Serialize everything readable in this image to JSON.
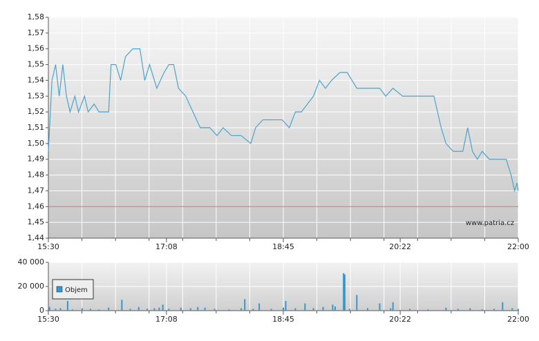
{
  "chart_data": [
    {
      "type": "line",
      "watermark": "www.patria.cz",
      "xlim": [
        "15:30",
        "22:00"
      ],
      "xticks": [
        "15:30",
        "17:08",
        "18:45",
        "20:22",
        "22:00"
      ],
      "ylim": [
        1.44,
        1.58
      ],
      "yticks": [
        {
          "value": 1.44,
          "label": "1,44"
        },
        {
          "value": 1.45,
          "label": "1,45"
        },
        {
          "value": 1.46,
          "label": "1,46"
        },
        {
          "value": 1.47,
          "label": "1,47"
        },
        {
          "value": 1.48,
          "label": "1,48"
        },
        {
          "value": 1.49,
          "label": "1,49"
        },
        {
          "value": 1.5,
          "label": "1,50"
        },
        {
          "value": 1.51,
          "label": "1,51"
        },
        {
          "value": 1.52,
          "label": "1,52"
        },
        {
          "value": 1.53,
          "label": "1,53"
        },
        {
          "value": 1.54,
          "label": "1,54"
        },
        {
          "value": 1.55,
          "label": "1,55"
        },
        {
          "value": 1.56,
          "label": "1,56"
        },
        {
          "value": 1.57,
          "label": "1,57"
        },
        {
          "value": 1.58,
          "label": "1,58"
        }
      ],
      "grid": true,
      "reference_line": 1.46,
      "reference_color": "#e06060",
      "color": "#4aa3cc",
      "x": [
        "15:30",
        "15:31",
        "15:33",
        "15:36",
        "15:39",
        "15:42",
        "15:45",
        "15:48",
        "15:52",
        "15:55",
        "16:00",
        "16:03",
        "16:08",
        "16:12",
        "16:20",
        "16:22",
        "16:26",
        "16:30",
        "16:34",
        "16:40",
        "16:46",
        "16:50",
        "16:54",
        "17:00",
        "17:06",
        "17:10",
        "17:14",
        "17:18",
        "17:24",
        "17:30",
        "17:36",
        "17:44",
        "17:50",
        "17:55",
        "18:02",
        "18:10",
        "18:18",
        "18:22",
        "18:28",
        "18:36",
        "18:44",
        "18:50",
        "18:55",
        "19:00",
        "19:05",
        "19:10",
        "19:15",
        "19:20",
        "19:25",
        "19:32",
        "19:38",
        "19:42",
        "19:46",
        "19:52",
        "20:00",
        "20:05",
        "20:10",
        "20:16",
        "20:24",
        "20:30",
        "20:40",
        "20:50",
        "20:56",
        "21:00",
        "21:06",
        "21:10",
        "21:14",
        "21:18",
        "21:22",
        "21:26",
        "21:30",
        "21:36",
        "21:45",
        "21:50",
        "21:54",
        "21:57",
        "21:59",
        "22:00"
      ],
      "values": [
        1.495,
        1.51,
        1.54,
        1.55,
        1.53,
        1.55,
        1.53,
        1.52,
        1.53,
        1.52,
        1.53,
        1.52,
        1.525,
        1.52,
        1.52,
        1.55,
        1.55,
        1.54,
        1.555,
        1.56,
        1.56,
        1.54,
        1.55,
        1.535,
        1.545,
        1.55,
        1.55,
        1.535,
        1.53,
        1.52,
        1.51,
        1.51,
        1.505,
        1.51,
        1.505,
        1.505,
        1.5,
        1.51,
        1.515,
        1.515,
        1.515,
        1.51,
        1.52,
        1.52,
        1.525,
        1.53,
        1.54,
        1.535,
        1.54,
        1.545,
        1.545,
        1.54,
        1.535,
        1.535,
        1.535,
        1.535,
        1.53,
        1.535,
        1.53,
        1.53,
        1.53,
        1.53,
        1.51,
        1.5,
        1.495,
        1.495,
        1.495,
        1.51,
        1.495,
        1.49,
        1.495,
        1.49,
        1.49,
        1.49,
        1.48,
        1.47,
        1.475,
        1.47
      ]
    },
    {
      "type": "bar",
      "xlim": [
        "15:30",
        "22:00"
      ],
      "xticks": [
        "15:30",
        "17:08",
        "18:45",
        "20:22",
        "22:00"
      ],
      "ylim": [
        0,
        40000
      ],
      "yticks": [
        0,
        {
          "value": 20000,
          "label": "20 000"
        },
        {
          "value": 40000,
          "label": "40 000"
        }
      ],
      "grid": true,
      "legend": "upper left",
      "series": [
        {
          "name": "Objem",
          "color": "#3399cc",
          "x": [
            "15:31",
            "15:36",
            "15:40",
            "15:46",
            "15:50",
            "15:58",
            "16:05",
            "16:12",
            "16:20",
            "16:31",
            "16:38",
            "16:45",
            "16:52",
            "16:58",
            "17:02",
            "17:05",
            "17:10",
            "17:20",
            "17:28",
            "17:34",
            "17:40",
            "17:48",
            "18:00",
            "18:10",
            "18:13",
            "18:20",
            "18:25",
            "18:35",
            "18:45",
            "18:47",
            "18:55",
            "19:03",
            "19:10",
            "19:18",
            "19:26",
            "19:28",
            "19:35",
            "19:36",
            "19:40",
            "19:46",
            "19:55",
            "20:05",
            "20:14",
            "20:16",
            "20:30",
            "20:45",
            "21:00",
            "21:10",
            "21:20",
            "21:30",
            "21:40",
            "21:47",
            "21:55",
            "22:00"
          ],
          "values": [
            3000,
            1500,
            2000,
            8000,
            1000,
            2000,
            1500,
            1000,
            2500,
            9000,
            1500,
            3000,
            1500,
            2000,
            2500,
            5000,
            1500,
            2500,
            2000,
            3000,
            2500,
            1500,
            1000,
            2000,
            9500,
            1500,
            6000,
            1500,
            2500,
            8000,
            2000,
            6000,
            2000,
            3000,
            5000,
            3500,
            31000,
            30000,
            1500,
            13000,
            2000,
            6000,
            2000,
            7000,
            1500,
            1000,
            2500,
            1500,
            2000,
            1000,
            1500,
            7000,
            2000,
            1500
          ]
        }
      ]
    }
  ]
}
